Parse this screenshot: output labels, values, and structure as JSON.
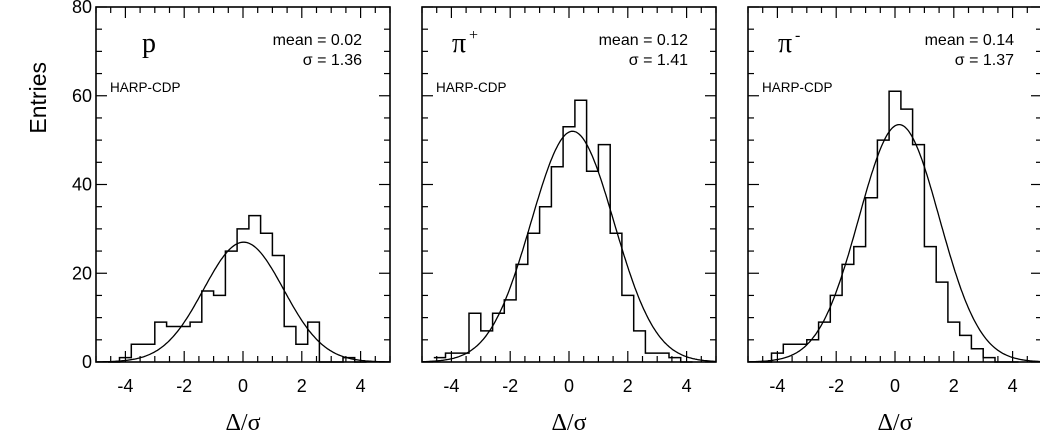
{
  "ylabel": "Entries",
  "chart_data": [
    {
      "type": "histogram",
      "particle": "p",
      "charge": "",
      "tag": "HARP-CDP",
      "mean_text": "mean = 0.02",
      "sigma_text": "σ = 1.36",
      "mean": 0.02,
      "sigma": 1.36,
      "fit_peak": 27,
      "xlabel": "Δ/σ",
      "xlim": [
        -5,
        5
      ],
      "ylim": [
        0,
        80
      ],
      "bin_width": 0.4,
      "bin_start": -4.6,
      "counts": [
        0,
        1,
        4,
        4,
        9,
        8,
        8,
        9,
        16,
        15,
        25,
        30,
        33,
        29,
        24,
        8,
        4,
        9,
        0,
        0,
        1,
        0
      ],
      "xticks": [
        "-4",
        "-2",
        "0",
        "2",
        "4"
      ],
      "yticks": [
        "0",
        "20",
        "40",
        "60",
        "80"
      ]
    },
    {
      "type": "histogram",
      "particle": "π",
      "charge": "+",
      "tag": "HARP-CDP",
      "mean_text": "mean = 0.12",
      "sigma_text": "σ = 1.41",
      "mean": 0.12,
      "sigma": 1.41,
      "fit_peak": 52,
      "xlabel": "Δ/σ",
      "xlim": [
        -5,
        5
      ],
      "ylim": [
        0,
        80
      ],
      "bin_width": 0.4,
      "bin_start": -4.6,
      "counts": [
        1,
        2,
        2,
        11,
        7,
        11,
        14,
        22,
        29,
        35,
        44,
        53,
        59,
        43,
        49,
        29,
        15,
        7,
        2,
        2,
        1,
        0
      ],
      "xticks": [
        "-4",
        "-2",
        "0",
        "2",
        "4"
      ],
      "yticks": []
    },
    {
      "type": "histogram",
      "particle": "π",
      "charge": "-",
      "tag": "HARP-CDP",
      "mean_text": "mean = 0.14",
      "sigma_text": "σ = 1.37",
      "mean": 0.14,
      "sigma": 1.37,
      "fit_peak": 53.5,
      "xlabel": "Δ/σ",
      "xlim": [
        -5,
        5
      ],
      "ylim": [
        0,
        80
      ],
      "bin_width": 0.4,
      "bin_start": -4.6,
      "counts": [
        0,
        2,
        4,
        4,
        5,
        9,
        15,
        22,
        26,
        37,
        50,
        61,
        57,
        49,
        26,
        18,
        9,
        6,
        3,
        1,
        0,
        0
      ],
      "xticks": [
        "-4",
        "-2",
        "0",
        "2",
        "4"
      ],
      "yticks": []
    }
  ]
}
